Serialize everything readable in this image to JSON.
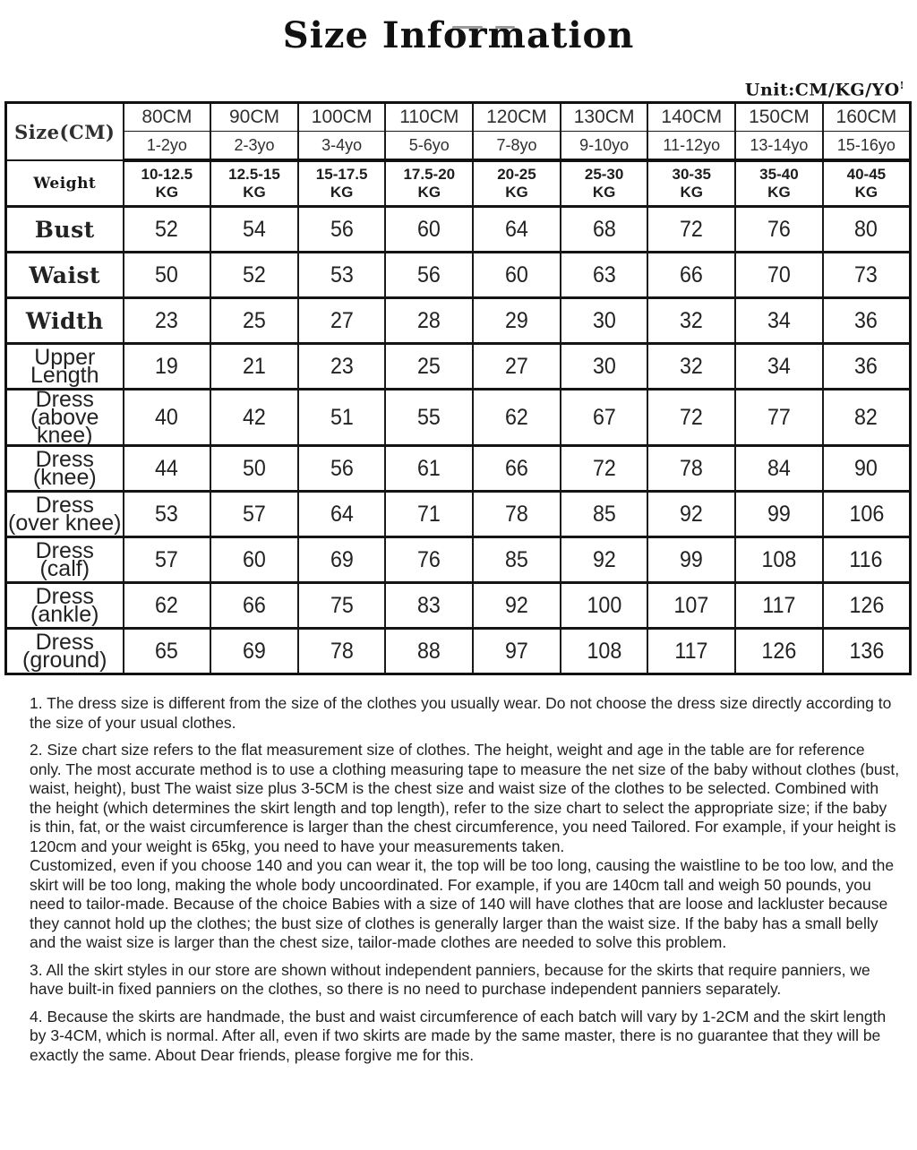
{
  "page": {
    "title": "Size Information",
    "unit_label": "Unit:CM/KG/YO",
    "unit_mark": "!"
  },
  "table": {
    "corner_label": "Size(CM)",
    "sizes": [
      "80CM",
      "90CM",
      "100CM",
      "110CM",
      "120CM",
      "130CM",
      "140CM",
      "150CM",
      "160CM"
    ],
    "ages": [
      "1-2yo",
      "2-3yo",
      "3-4yo",
      "5-6yo",
      "7-8yo",
      "9-10yo",
      "11-12yo",
      "13-14yo",
      "15-16yo"
    ],
    "weight_row": {
      "label": "Weight",
      "unit": "KG",
      "values": [
        "10-12.5",
        "12.5-15",
        "15-17.5",
        "17.5-20",
        "20-25",
        "25-30",
        "30-35",
        "35-40",
        "40-45"
      ]
    },
    "rows": [
      {
        "label": "Bust",
        "label_style": "serif",
        "values": [
          "52",
          "54",
          "56",
          "60",
          "64",
          "68",
          "72",
          "76",
          "80"
        ]
      },
      {
        "label": "Waist",
        "label_style": "serif",
        "values": [
          "50",
          "52",
          "53",
          "56",
          "60",
          "63",
          "66",
          "70",
          "73"
        ]
      },
      {
        "label": "Width",
        "label_style": "serif",
        "values": [
          "23",
          "25",
          "27",
          "28",
          "29",
          "30",
          "32",
          "34",
          "36"
        ]
      },
      {
        "label": "Upper\nLength",
        "label_style": "sans",
        "values": [
          "19",
          "21",
          "23",
          "25",
          "27",
          "30",
          "32",
          "34",
          "36"
        ]
      },
      {
        "label": "Dress\n(above knee)",
        "label_style": "sans",
        "values": [
          "40",
          "42",
          "51",
          "55",
          "62",
          "67",
          "72",
          "77",
          "82"
        ]
      },
      {
        "label": "Dress (knee)",
        "label_style": "sans",
        "values": [
          "44",
          "50",
          "56",
          "61",
          "66",
          "72",
          "78",
          "84",
          "90"
        ]
      },
      {
        "label": "Dress\n(over knee)",
        "label_style": "sans",
        "values": [
          "53",
          "57",
          "64",
          "71",
          "78",
          "85",
          "92",
          "99",
          "106"
        ]
      },
      {
        "label": "Dress\n(calf)",
        "label_style": "sans",
        "values": [
          "57",
          "60",
          "69",
          "76",
          "85",
          "92",
          "99",
          "108",
          "116"
        ]
      },
      {
        "label": "Dress\n(ankle)",
        "label_style": "sans",
        "values": [
          "62",
          "66",
          "75",
          "83",
          "92",
          "100",
          "107",
          "117",
          "126"
        ]
      },
      {
        "label": "Dress\n(ground)",
        "label_style": "sans",
        "values": [
          "65",
          "69",
          "78",
          "88",
          "97",
          "108",
          "117",
          "126",
          "136"
        ]
      }
    ]
  },
  "notes": [
    {
      "parts": [
        "1. The dress size is different from the size of the clothes you usually wear. Do not choose the dress size directly according to the size of your usual clothes."
      ]
    },
    {
      "parts": [
        "2. Size chart size refers to the flat measurement size of clothes. The height, weight and age in the table are for reference only. The most accurate method is to use a clothing measuring tape to measure the net size of the baby without clothes (bust, waist, height), bust The waist size plus 3-5CM is the chest size and waist size of the clothes to be selected. Combined with the height (which determines the skirt length and top length), refer to the size chart to select the appropriate size; if the baby is thin, fat, or the waist circumference is larger than the chest circumference, you need Tailored. For example, if your height is 120cm and your weight is 65kg, you need to have your measurements taken.",
        "Customized, even if you choose 140 and you can wear it, the top will be too long, causing the waistline to be too low, and the skirt will be too long, making the whole body uncoordinated. For example, if you are 140cm tall and weigh 50 pounds, you need to tailor-made. Because of the choice Babies with a size of 140 will have clothes that are loose and lackluster because they cannot hold up the clothes; the bust size of clothes is generally larger than the waist size. If the baby has a small belly and the waist size is larger than the chest size, tailor-made clothes are needed to solve this problem."
      ]
    },
    {
      "parts": [
        "3. All the skirt styles in our store are shown without independent panniers, because for the skirts that require panniers, we have built-in fixed panniers on the clothes, so there is no need to purchase independent panniers separately."
      ]
    },
    {
      "parts": [
        "4. Because the skirts are handmade, the bust and waist circumference of each batch will vary by 1-2CM and the skirt length by 3-4CM, which is normal. After all, even if two skirts are made by the same master, there is no guarantee that they will be exactly the same. About Dear friends, please forgive me for this."
      ]
    }
  ]
}
